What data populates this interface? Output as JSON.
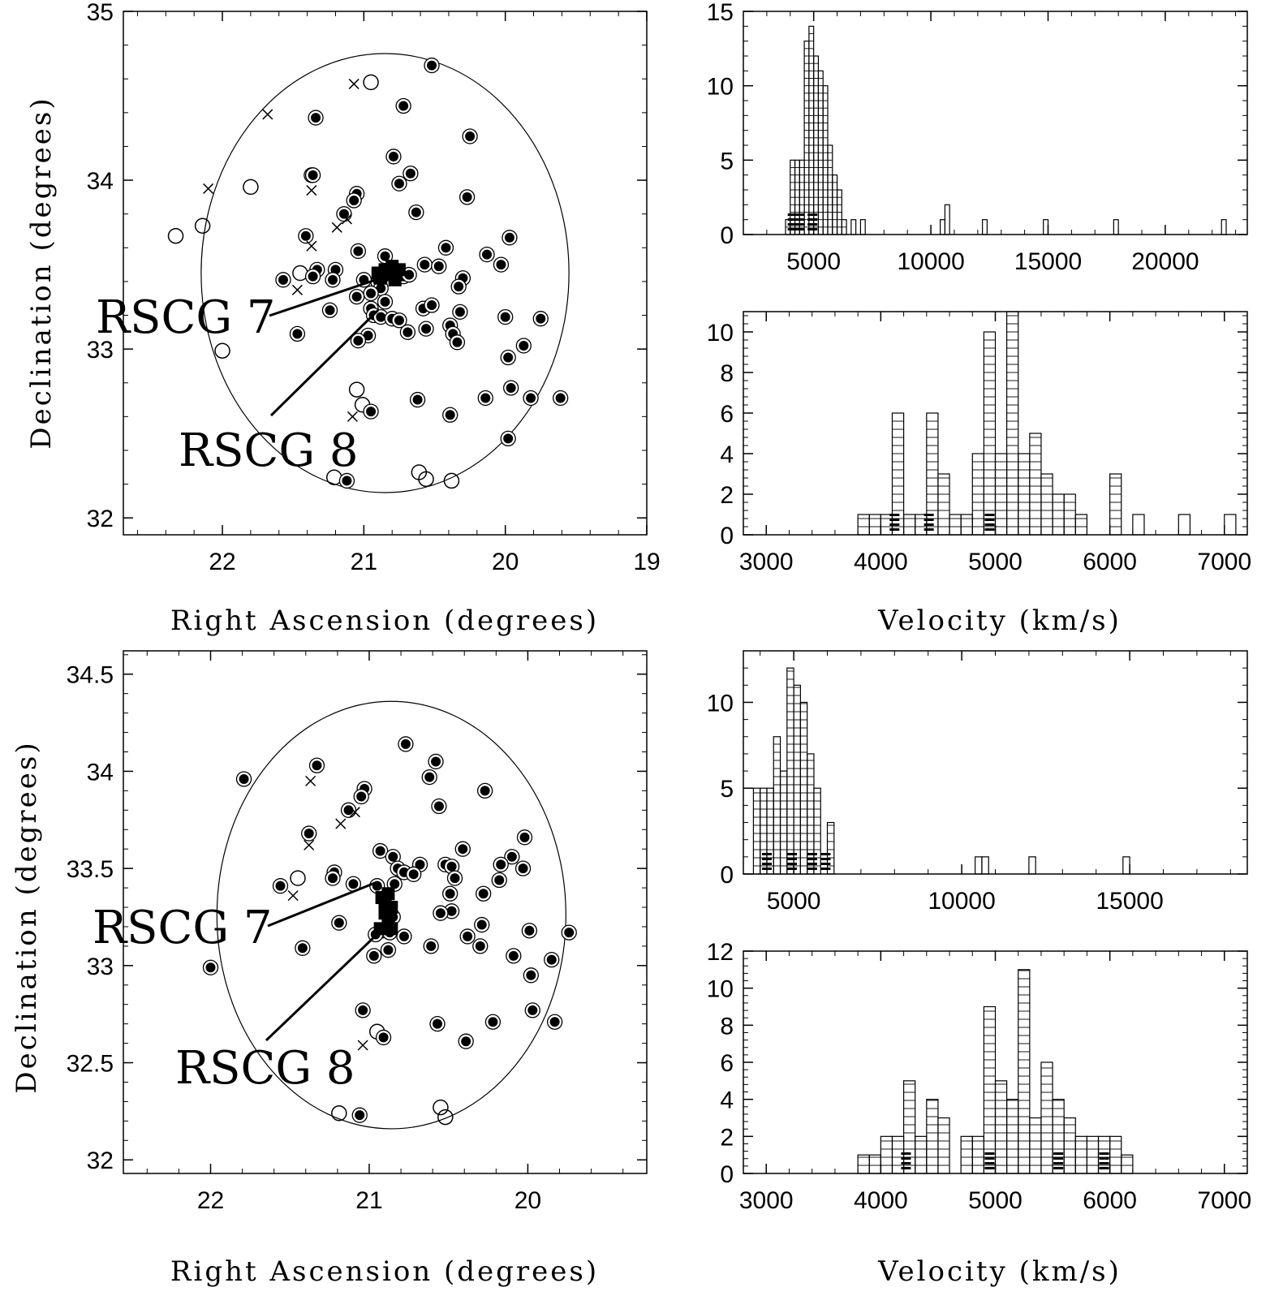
{
  "figure": {
    "panels": [
      {
        "id": "sky-top",
        "xlabel": "Right Ascension (degrees)",
        "ylabel": "Declination (degrees)"
      },
      {
        "id": "hist-wide-top",
        "xlabel": "",
        "ylabel": ""
      },
      {
        "id": "hist-zoom-top",
        "xlabel": "Velocity (km/s)",
        "ylabel": ""
      },
      {
        "id": "sky-bottom",
        "xlabel": "Right Ascension (degrees)",
        "ylabel": "Declination (degrees)"
      },
      {
        "id": "hist-wide-bottom",
        "xlabel": "",
        "ylabel": ""
      },
      {
        "id": "hist-zoom-bottom",
        "xlabel": "Velocity (km/s)",
        "ylabel": ""
      }
    ]
  },
  "chart_data": [
    {
      "type": "scatter",
      "panel": "sky-top",
      "title": "",
      "xlabel": "Right Ascension (degrees)",
      "ylabel": "Declination (degrees)",
      "xlim": [
        22.7,
        19.0
      ],
      "ylim": [
        31.9,
        35.0
      ],
      "xticks": [
        22,
        21,
        20,
        19
      ],
      "yticks": [
        32,
        33,
        34,
        35
      ],
      "circle": {
        "ra": 20.85,
        "dec": 33.45,
        "radius_deg": 1.3
      },
      "annotations": [
        {
          "text": "RSCG 7",
          "target": [
            20.88,
            33.42
          ]
        },
        {
          "text": "RSCG 8",
          "target": [
            20.9,
            33.23
          ]
        }
      ],
      "members": [
        [
          20.52,
          34.68
        ],
        [
          21.34,
          34.37
        ],
        [
          20.72,
          34.44
        ],
        [
          20.25,
          34.26
        ],
        [
          20.79,
          34.14
        ],
        [
          21.37,
          34.03
        ],
        [
          21.36,
          34.03
        ],
        [
          20.67,
          34.04
        ],
        [
          20.75,
          33.98
        ],
        [
          21.05,
          33.92
        ],
        [
          21.07,
          33.88
        ],
        [
          20.27,
          33.9
        ],
        [
          20.63,
          33.81
        ],
        [
          21.14,
          33.8
        ],
        [
          21.41,
          33.67
        ],
        [
          19.97,
          33.66
        ],
        [
          20.42,
          33.6
        ],
        [
          20.13,
          33.56
        ],
        [
          21.04,
          33.58
        ],
        [
          20.85,
          33.55
        ],
        [
          21.33,
          33.47
        ],
        [
          21.2,
          33.47
        ],
        [
          21.36,
          33.43
        ],
        [
          21.22,
          33.41
        ],
        [
          20.57,
          33.5
        ],
        [
          20.47,
          33.49
        ],
        [
          20.03,
          33.5
        ],
        [
          20.72,
          33.43
        ],
        [
          20.68,
          33.44
        ],
        [
          20.3,
          33.42
        ],
        [
          21.57,
          33.41
        ],
        [
          20.9,
          33.4
        ],
        [
          21.0,
          33.41
        ],
        [
          20.88,
          33.36
        ],
        [
          20.33,
          33.37
        ],
        [
          20.95,
          33.33
        ],
        [
          21.05,
          33.31
        ],
        [
          20.85,
          33.28
        ],
        [
          20.58,
          33.24
        ],
        [
          20.52,
          33.26
        ],
        [
          20.95,
          33.24
        ],
        [
          20.32,
          33.22
        ],
        [
          21.24,
          33.23
        ],
        [
          20.93,
          33.2
        ],
        [
          20.88,
          33.19
        ],
        [
          20.8,
          33.18
        ],
        [
          20.75,
          33.17
        ],
        [
          20.39,
          33.14
        ],
        [
          20.0,
          33.19
        ],
        [
          19.75,
          33.18
        ],
        [
          20.56,
          33.12
        ],
        [
          20.37,
          33.09
        ],
        [
          21.47,
          33.09
        ],
        [
          20.97,
          33.08
        ],
        [
          20.69,
          33.1
        ],
        [
          21.04,
          33.05
        ],
        [
          20.34,
          33.04
        ],
        [
          19.87,
          33.02
        ],
        [
          19.98,
          32.95
        ],
        [
          19.96,
          32.77
        ],
        [
          20.14,
          32.71
        ],
        [
          19.82,
          32.71
        ],
        [
          19.61,
          32.71
        ],
        [
          20.62,
          32.7
        ],
        [
          20.95,
          32.63
        ],
        [
          20.39,
          32.61
        ],
        [
          19.98,
          32.47
        ],
        [
          21.12,
          32.22
        ]
      ],
      "nonmembers": [
        [
          20.95,
          34.58
        ],
        [
          21.8,
          33.96
        ],
        [
          22.14,
          33.73
        ],
        [
          22.33,
          33.67
        ],
        [
          21.45,
          33.45
        ],
        [
          22.0,
          32.99
        ],
        [
          21.05,
          32.76
        ],
        [
          21.01,
          32.67
        ],
        [
          21.21,
          32.24
        ],
        [
          20.61,
          32.27
        ],
        [
          20.56,
          32.23
        ],
        [
          20.38,
          32.22
        ]
      ],
      "crosses": [
        [
          21.07,
          34.57
        ],
        [
          21.68,
          34.39
        ],
        [
          22.1,
          33.95
        ],
        [
          21.37,
          33.94
        ],
        [
          21.12,
          33.77
        ],
        [
          21.19,
          33.72
        ],
        [
          21.37,
          33.61
        ],
        [
          21.47,
          33.35
        ],
        [
          21.08,
          32.6
        ]
      ],
      "core": [
        [
          20.85,
          33.47
        ],
        [
          20.8,
          33.49
        ],
        [
          20.75,
          33.47
        ],
        [
          20.88,
          33.42
        ],
        [
          20.82,
          33.44
        ],
        [
          20.9,
          33.45
        ],
        [
          20.78,
          33.41
        ]
      ]
    },
    {
      "type": "bar",
      "panel": "hist-wide-top",
      "title": "",
      "xlabel": "",
      "ylabel": "",
      "xlim": [
        2000,
        23500
      ],
      "ylim": [
        0,
        15
      ],
      "xticks": [
        5000,
        10000,
        15000,
        20000
      ],
      "yticks": [
        0,
        5,
        10,
        15
      ],
      "bin_width": 200,
      "bins": [
        [
          3800,
          1
        ],
        [
          4000,
          5
        ],
        [
          4200,
          5
        ],
        [
          4400,
          5
        ],
        [
          4600,
          13
        ],
        [
          4800,
          14
        ],
        [
          5000,
          12
        ],
        [
          5200,
          11
        ],
        [
          5400,
          10
        ],
        [
          5600,
          6
        ],
        [
          5800,
          4
        ],
        [
          6000,
          3
        ],
        [
          6200,
          1
        ],
        [
          6600,
          1
        ],
        [
          7000,
          1
        ],
        [
          10400,
          1
        ],
        [
          10600,
          2
        ],
        [
          12200,
          1
        ],
        [
          14800,
          1
        ],
        [
          17800,
          1
        ],
        [
          22400,
          1
        ]
      ],
      "shaded_to": 6300,
      "group_markers": [
        4100,
        4400,
        4950
      ]
    },
    {
      "type": "bar",
      "panel": "hist-zoom-top",
      "title": "",
      "xlabel": "Velocity (km/s)",
      "ylabel": "",
      "xlim": [
        2800,
        7200
      ],
      "ylim": [
        0,
        11
      ],
      "xticks": [
        3000,
        4000,
        5000,
        6000,
        7000
      ],
      "yticks": [
        0,
        2,
        4,
        6,
        8,
        10
      ],
      "bin_width": 100,
      "bins": [
        [
          3800,
          1
        ],
        [
          3900,
          1
        ],
        [
          4000,
          1
        ],
        [
          4100,
          6
        ],
        [
          4200,
          1
        ],
        [
          4300,
          1
        ],
        [
          4400,
          6
        ],
        [
          4500,
          3
        ],
        [
          4600,
          1
        ],
        [
          4700,
          1
        ],
        [
          4800,
          4
        ],
        [
          4900,
          10
        ],
        [
          5000,
          4
        ],
        [
          5100,
          11
        ],
        [
          5200,
          4
        ],
        [
          5300,
          5
        ],
        [
          5400,
          3
        ],
        [
          5500,
          2
        ],
        [
          5600,
          2
        ],
        [
          5700,
          1
        ],
        [
          5800,
          0
        ],
        [
          5900,
          0
        ],
        [
          6000,
          3
        ],
        [
          6200,
          1
        ],
        [
          6600,
          1
        ],
        [
          7000,
          1
        ]
      ],
      "shaded_to": 6100,
      "group_markers": [
        4120,
        4420,
        4950
      ]
    },
    {
      "type": "scatter",
      "panel": "sky-bottom",
      "title": "",
      "xlabel": "Right Ascension (degrees)",
      "ylabel": "Declination (degrees)",
      "xlim": [
        22.55,
        19.25
      ],
      "ylim": [
        31.93,
        34.62
      ],
      "xticks": [
        22,
        21,
        20
      ],
      "yticks": [
        32,
        32.5,
        33,
        33.5,
        34,
        34.5
      ],
      "circle": {
        "ra": 20.86,
        "dec": 33.26,
        "radius_deg": 1.1
      },
      "annotations": [
        {
          "text": "RSCG 7",
          "target": [
            20.95,
            33.43
          ]
        },
        {
          "text": "RSCG 8",
          "target": [
            20.9,
            33.2
          ]
        }
      ],
      "members": [
        [
          20.77,
          34.14
        ],
        [
          21.33,
          34.03
        ],
        [
          20.58,
          34.05
        ],
        [
          20.62,
          33.97
        ],
        [
          21.79,
          33.96
        ],
        [
          20.27,
          33.9
        ],
        [
          21.03,
          33.91
        ],
        [
          21.05,
          33.87
        ],
        [
          21.13,
          33.8
        ],
        [
          20.56,
          33.82
        ],
        [
          21.38,
          33.68
        ],
        [
          20.02,
          33.66
        ],
        [
          20.41,
          33.6
        ],
        [
          20.93,
          33.59
        ],
        [
          20.85,
          33.56
        ],
        [
          20.1,
          33.56
        ],
        [
          20.17,
          33.52
        ],
        [
          20.68,
          33.52
        ],
        [
          20.52,
          33.52
        ],
        [
          20.48,
          33.51
        ],
        [
          20.03,
          33.5
        ],
        [
          20.82,
          33.5
        ],
        [
          20.78,
          33.48
        ],
        [
          21.22,
          33.48
        ],
        [
          21.23,
          33.45
        ],
        [
          20.72,
          33.47
        ],
        [
          21.1,
          33.42
        ],
        [
          20.46,
          33.45
        ],
        [
          20.18,
          33.44
        ],
        [
          21.56,
          33.41
        ],
        [
          20.84,
          33.42
        ],
        [
          20.95,
          33.41
        ],
        [
          20.49,
          33.37
        ],
        [
          20.28,
          33.37
        ],
        [
          20.48,
          33.28
        ],
        [
          20.55,
          33.27
        ],
        [
          21.19,
          33.22
        ],
        [
          20.85,
          33.25
        ],
        [
          20.29,
          33.21
        ],
        [
          19.99,
          33.18
        ],
        [
          19.74,
          33.17
        ],
        [
          20.92,
          33.18
        ],
        [
          20.87,
          33.17
        ],
        [
          20.96,
          33.16
        ],
        [
          20.78,
          33.15
        ],
        [
          20.38,
          33.15
        ],
        [
          20.3,
          33.1
        ],
        [
          20.61,
          33.1
        ],
        [
          21.42,
          33.09
        ],
        [
          20.88,
          33.08
        ],
        [
          20.97,
          33.05
        ],
        [
          20.09,
          33.05
        ],
        [
          19.85,
          33.03
        ],
        [
          22.0,
          32.99
        ],
        [
          19.98,
          32.95
        ],
        [
          21.04,
          32.77
        ],
        [
          19.97,
          32.77
        ],
        [
          20.57,
          32.7
        ],
        [
          20.22,
          32.71
        ],
        [
          19.83,
          32.71
        ],
        [
          20.91,
          32.63
        ],
        [
          20.39,
          32.61
        ],
        [
          21.06,
          32.23
        ]
      ],
      "nonmembers": [
        [
          21.45,
          33.45
        ],
        [
          20.95,
          32.66
        ],
        [
          21.19,
          32.24
        ],
        [
          20.55,
          32.27
        ],
        [
          20.52,
          32.22
        ]
      ],
      "crosses": [
        [
          21.37,
          33.95
        ],
        [
          21.09,
          33.79
        ],
        [
          21.18,
          33.73
        ],
        [
          21.38,
          33.62
        ],
        [
          21.48,
          33.36
        ],
        [
          21.04,
          32.59
        ]
      ],
      "core": [
        [
          20.88,
          33.37
        ],
        [
          20.92,
          33.35
        ],
        [
          20.86,
          33.3
        ],
        [
          20.9,
          33.27
        ],
        [
          20.88,
          33.22
        ],
        [
          20.93,
          33.19
        ],
        [
          20.86,
          33.19
        ],
        [
          20.9,
          33.32
        ]
      ]
    },
    {
      "type": "bar",
      "panel": "hist-wide-bottom",
      "title": "",
      "xlabel": "",
      "ylabel": "",
      "xlim": [
        3500,
        18500
      ],
      "ylim": [
        0,
        13
      ],
      "xticks": [
        5000,
        10000,
        15000
      ],
      "yticks": [
        0,
        5,
        10
      ],
      "bin_width": 200,
      "bins": [
        [
          3800,
          5
        ],
        [
          4000,
          5
        ],
        [
          4200,
          5
        ],
        [
          4400,
          8
        ],
        [
          4600,
          6
        ],
        [
          4800,
          12
        ],
        [
          5000,
          11
        ],
        [
          5200,
          10
        ],
        [
          5400,
          7
        ],
        [
          5600,
          5
        ],
        [
          6000,
          3
        ],
        [
          10400,
          1
        ],
        [
          10600,
          1
        ],
        [
          12000,
          1
        ],
        [
          14800,
          1
        ]
      ],
      "shaded_to": 6300,
      "group_markers": [
        4200,
        4950,
        5550,
        5950
      ]
    },
    {
      "type": "bar",
      "panel": "hist-zoom-bottom",
      "title": "",
      "xlabel": "Velocity (km/s)",
      "ylabel": "",
      "xlim": [
        2800,
        7200
      ],
      "ylim": [
        0,
        12
      ],
      "xticks": [
        3000,
        4000,
        5000,
        6000,
        7000
      ],
      "yticks": [
        0,
        2,
        4,
        6,
        8,
        10,
        12
      ],
      "bin_width": 100,
      "bins": [
        [
          3800,
          1
        ],
        [
          3900,
          1
        ],
        [
          4000,
          2
        ],
        [
          4100,
          2
        ],
        [
          4200,
          5
        ],
        [
          4300,
          2
        ],
        [
          4400,
          4
        ],
        [
          4500,
          3
        ],
        [
          4700,
          2
        ],
        [
          4800,
          2
        ],
        [
          4900,
          9
        ],
        [
          5000,
          5
        ],
        [
          5100,
          4
        ],
        [
          5200,
          11
        ],
        [
          5300,
          3
        ],
        [
          5400,
          6
        ],
        [
          5500,
          4
        ],
        [
          5600,
          3
        ],
        [
          5700,
          2
        ],
        [
          5800,
          2
        ],
        [
          5900,
          2
        ],
        [
          6000,
          2
        ],
        [
          6100,
          1
        ]
      ],
      "shaded_to": 6200,
      "group_markers": [
        4220,
        4950,
        5550,
        5950
      ]
    }
  ]
}
